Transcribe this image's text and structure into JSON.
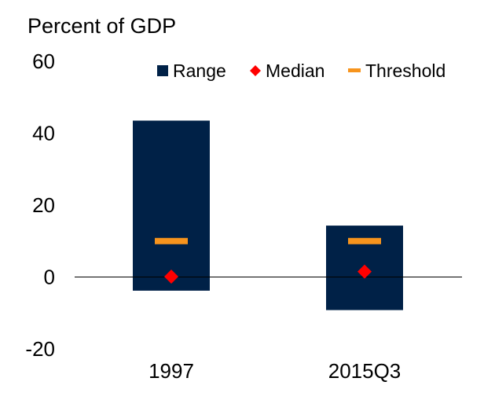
{
  "chart_data": {
    "type": "bar",
    "title": "",
    "ylabel": "Percent of GDP",
    "xlabel": "",
    "categories": [
      "1997",
      "2015Q3"
    ],
    "ylim": [
      -20,
      60
    ],
    "yticks": [
      "60",
      "40",
      "20",
      "0",
      "-20"
    ],
    "ytick_values": [
      60,
      40,
      20,
      0,
      -20
    ],
    "series": [
      {
        "name": "Range",
        "kind": "range",
        "color": "#002147",
        "values": [
          [
            -3.8,
            43.5
          ],
          [
            -9.2,
            14.3
          ]
        ]
      },
      {
        "name": "Median",
        "kind": "marker",
        "color": "#ff0000",
        "values": [
          0.1,
          1.5
        ]
      },
      {
        "name": "Threshold",
        "kind": "dash",
        "color": "#f7941d",
        "values": [
          10,
          10
        ]
      }
    ],
    "legend": {
      "position": "top-right",
      "entries": [
        "Range",
        "Median",
        "Threshold"
      ]
    },
    "grid": false
  }
}
